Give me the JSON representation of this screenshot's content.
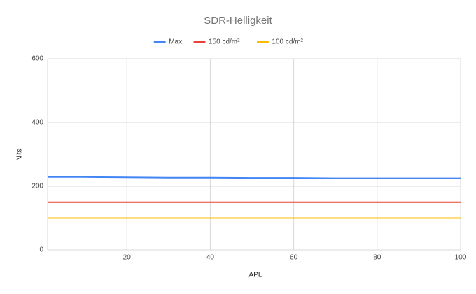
{
  "chart_data": {
    "type": "line",
    "title": "SDR-Helligkeit",
    "x_label": "APL",
    "y_label": "Nits",
    "x": [
      1,
      10,
      20,
      30,
      40,
      50,
      60,
      70,
      80,
      90,
      100
    ],
    "series": [
      {
        "name": "Max",
        "color": "#4285f4",
        "values": [
          229,
          229,
          228,
          227,
          227,
          226,
          226,
          225,
          225,
          225,
          225
        ]
      },
      {
        "name": "150 cd/m²",
        "color": "#ea4335",
        "values": [
          150,
          150,
          150,
          150,
          150,
          150,
          150,
          150,
          150,
          150,
          150
        ]
      },
      {
        "name": "100 cd/m²",
        "color": "#fbbc04",
        "values": [
          100,
          100,
          100,
          100,
          100,
          100,
          100,
          100,
          100,
          100,
          100
        ]
      }
    ],
    "xlim": [
      1,
      100
    ],
    "xticks": [
      20,
      40,
      60,
      80,
      100
    ],
    "ylim": [
      0,
      600
    ],
    "yticks": [
      0,
      200,
      400,
      600
    ],
    "grid": true,
    "legend": "top"
  }
}
